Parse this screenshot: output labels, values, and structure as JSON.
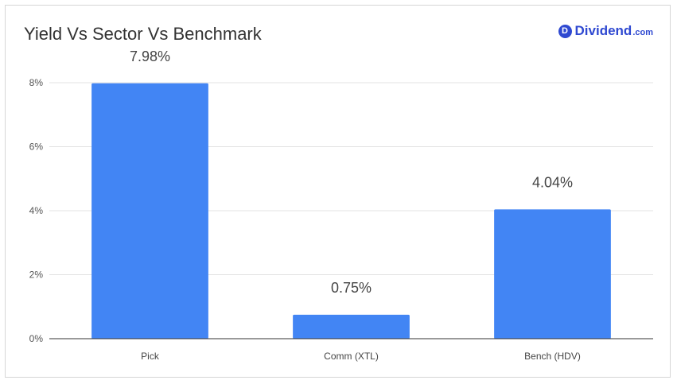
{
  "chart_data": {
    "type": "bar",
    "title": "Yield Vs Sector Vs Benchmark",
    "categories": [
      "Pick",
      "Comm (XTL)",
      "Bench (HDV)"
    ],
    "values": [
      7.98,
      0.75,
      4.04
    ],
    "data_labels": [
      "7.98%",
      "0.75%",
      "4.04%"
    ],
    "yticks": [
      0,
      2,
      4,
      6,
      8
    ],
    "ytick_labels": [
      "0%",
      "2%",
      "4%",
      "6%",
      "8%"
    ],
    "ylim": [
      0,
      8
    ],
    "xlabel": "",
    "ylabel": "",
    "grid": true,
    "bar_color": "#4285f4"
  },
  "brand": {
    "mark": "D",
    "name": "Dividend",
    "tld": ".com",
    "color": "#2f49d1",
    "icon": "dividend-logo-icon"
  }
}
